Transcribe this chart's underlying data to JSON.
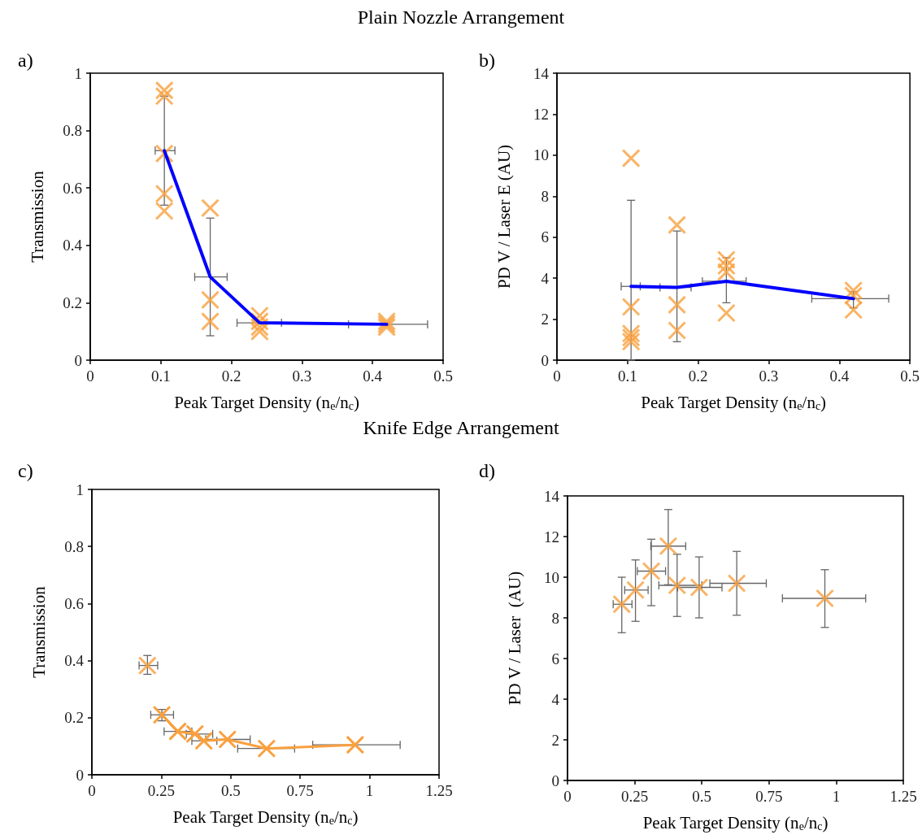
{
  "chart_data": [
    {
      "type": "scatter",
      "title": "Plain Nozzle Arrangement",
      "annotations": [
        "a)"
      ],
      "xlabel": "Peak Target Density (n$_{e}$/n$_{c}$)",
      "ylabel": "Transmission",
      "xlim": [
        0,
        0.5
      ],
      "xticks": [
        0,
        0.1,
        0.2,
        0.3,
        0.4,
        0.5
      ],
      "ylim": [
        0,
        1
      ],
      "yticks": [
        0,
        0.2,
        0.4,
        0.6,
        0.8,
        1
      ],
      "series": [
        {
          "type": "scatter",
          "color": "#f9a03f",
          "marker": "cross",
          "x": [
            0.105,
            0.105,
            0.105,
            0.105,
            0.105,
            0.17,
            0.17,
            0.17,
            0.24,
            0.24,
            0.24,
            0.24,
            0.42,
            0.42,
            0.42
          ],
          "values": [
            0.94,
            0.92,
            0.72,
            0.58,
            0.52,
            0.53,
            0.21,
            0.135,
            0.155,
            0.135,
            0.115,
            0.1,
            0.135,
            0.125,
            0.115
          ]
        },
        {
          "type": "line",
          "color": "#0000ff",
          "marker": "none",
          "line_style": "solid",
          "x": [
            0.105,
            0.17,
            0.24,
            0.42
          ],
          "values": [
            0.73,
            0.29,
            0.13,
            0.125
          ],
          "errors": [
            [
              0.54,
              0.92
            ],
            [
              0.085,
              0.495
            ],
            null,
            null
          ],
          "xerrors": [
            [
              0.092,
              0.12
            ],
            [
              0.148,
              0.194
            ],
            [
              0.208,
              0.271
            ],
            [
              0.366,
              0.478
            ]
          ]
        }
      ]
    },
    {
      "type": "scatter",
      "annotations": [
        "b)"
      ],
      "xlabel": "Peak Target Density (n$_{e}$/n$_{c}$)",
      "ylabel": "PD V / Laser E (AU)",
      "xlim": [
        0,
        0.5
      ],
      "xticks": [
        0,
        0.1,
        0.2,
        0.3,
        0.4,
        0.5
      ],
      "ylim": [
        0,
        14
      ],
      "yticks": [
        0,
        2,
        4,
        6,
        8,
        10,
        12,
        14
      ],
      "series": [
        {
          "type": "scatter",
          "color": "#f9a03f",
          "marker": "cross",
          "x": [
            0.105,
            0.105,
            0.105,
            0.105,
            0.105,
            0.17,
            0.17,
            0.17,
            0.24,
            0.24,
            0.24,
            0.24,
            0.42,
            0.42,
            0.42
          ],
          "values": [
            9.85,
            2.6,
            1.3,
            1.1,
            0.9,
            6.6,
            2.7,
            1.45,
            4.9,
            4.6,
            4.3,
            2.3,
            3.4,
            3.15,
            2.45
          ]
        },
        {
          "type": "line",
          "color": "#0000ff",
          "marker": "none",
          "line_style": "solid",
          "x": [
            0.105,
            0.17,
            0.24,
            0.42
          ],
          "values": [
            3.6,
            3.55,
            3.85,
            3.0
          ],
          "errors": [
            [
              0,
              7.8
            ],
            [
              0.9,
              6.3
            ],
            [
              2.8,
              5.0
            ],
            [
              2.55,
              3.35
            ]
          ],
          "xerrors": [
            [
              0.091,
              0.118
            ],
            [
              0.146,
              0.19
            ],
            [
              0.206,
              0.268
            ],
            [
              0.361,
              0.47
            ]
          ]
        }
      ]
    },
    {
      "type": "scatter",
      "title": "Knife Edge Arrangement",
      "annotations": [
        "c)"
      ],
      "xlabel": "Peak Target Density (n$_{e}$/n$_{c}$)",
      "ylabel": "Transmission",
      "xlim": [
        0,
        1.25
      ],
      "xticks": [
        0,
        0.25,
        0.5,
        0.75,
        1,
        1.25
      ],
      "ylim": [
        0,
        1
      ],
      "yticks": [
        0,
        0.2,
        0.4,
        0.6,
        0.8,
        1
      ],
      "series": [
        {
          "type": "scatter",
          "color": "#f9a03f",
          "marker": "cross",
          "x": [
            0.2
          ],
          "values": [
            0.383
          ],
          "errors": [
            [
              0.352,
              0.418
            ]
          ],
          "xerrors": [
            [
              0.17,
              0.237
            ]
          ]
        },
        {
          "type": "line",
          "color": "#f9a03f",
          "marker": "cross",
          "line_style": "solid",
          "x": [
            0.252,
            0.309,
            0.371,
            0.403,
            0.488,
            0.629,
            0.948
          ],
          "values": [
            0.21,
            0.152,
            0.143,
            0.119,
            0.124,
            0.092,
            0.105
          ],
          "errors": [
            [
              0.189,
              0.229
            ],
            null,
            null,
            null,
            null,
            null,
            null
          ],
          "xerrors": [
            [
              0.212,
              0.294
            ],
            [
              0.26,
              0.36
            ],
            [
              0.34,
              0.435
            ],
            [
              0.36,
              0.45
            ],
            [
              0.41,
              0.57
            ],
            [
              0.525,
              0.73
            ],
            [
              0.795,
              1.11
            ]
          ]
        }
      ]
    },
    {
      "type": "scatter",
      "annotations": [
        "d)"
      ],
      "xlabel": "Peak Target Density (n$_{e}$/n$_{c}$)",
      "ylabel": "PD V / Laser  (AU)",
      "xlim": [
        0,
        1.25
      ],
      "xticks": [
        0,
        0.25,
        0.5,
        0.75,
        1,
        1.25
      ],
      "ylim": [
        0,
        14
      ],
      "yticks": [
        0,
        2,
        4,
        6,
        8,
        10,
        12,
        14
      ],
      "series": [
        {
          "type": "scatter",
          "color": "#f9a03f",
          "marker": "cross",
          "x": [
            0.202,
            0.253,
            0.312,
            0.375,
            0.408,
            0.49,
            0.63,
            0.958
          ],
          "values": [
            8.67,
            9.37,
            10.3,
            11.53,
            9.6,
            9.5,
            9.7,
            8.96
          ],
          "errors": [
            [
              7.27,
              10
            ],
            [
              7.83,
              10.85
            ],
            [
              8.6,
              11.87
            ],
            [
              9.63,
              13.33
            ],
            [
              8.07,
              11.13
            ],
            [
              8,
              11
            ],
            [
              8.13,
              11.27
            ],
            [
              7.53,
              10.37
            ]
          ],
          "xerrors": [
            [
              0.17,
              0.24
            ],
            [
              0.213,
              0.3
            ],
            [
              0.26,
              0.365
            ],
            [
              0.31,
              0.44
            ],
            [
              0.34,
              0.5
            ],
            [
              0.41,
              0.575
            ],
            [
              0.53,
              0.74
            ],
            [
              0.8,
              1.11
            ]
          ]
        }
      ]
    }
  ]
}
